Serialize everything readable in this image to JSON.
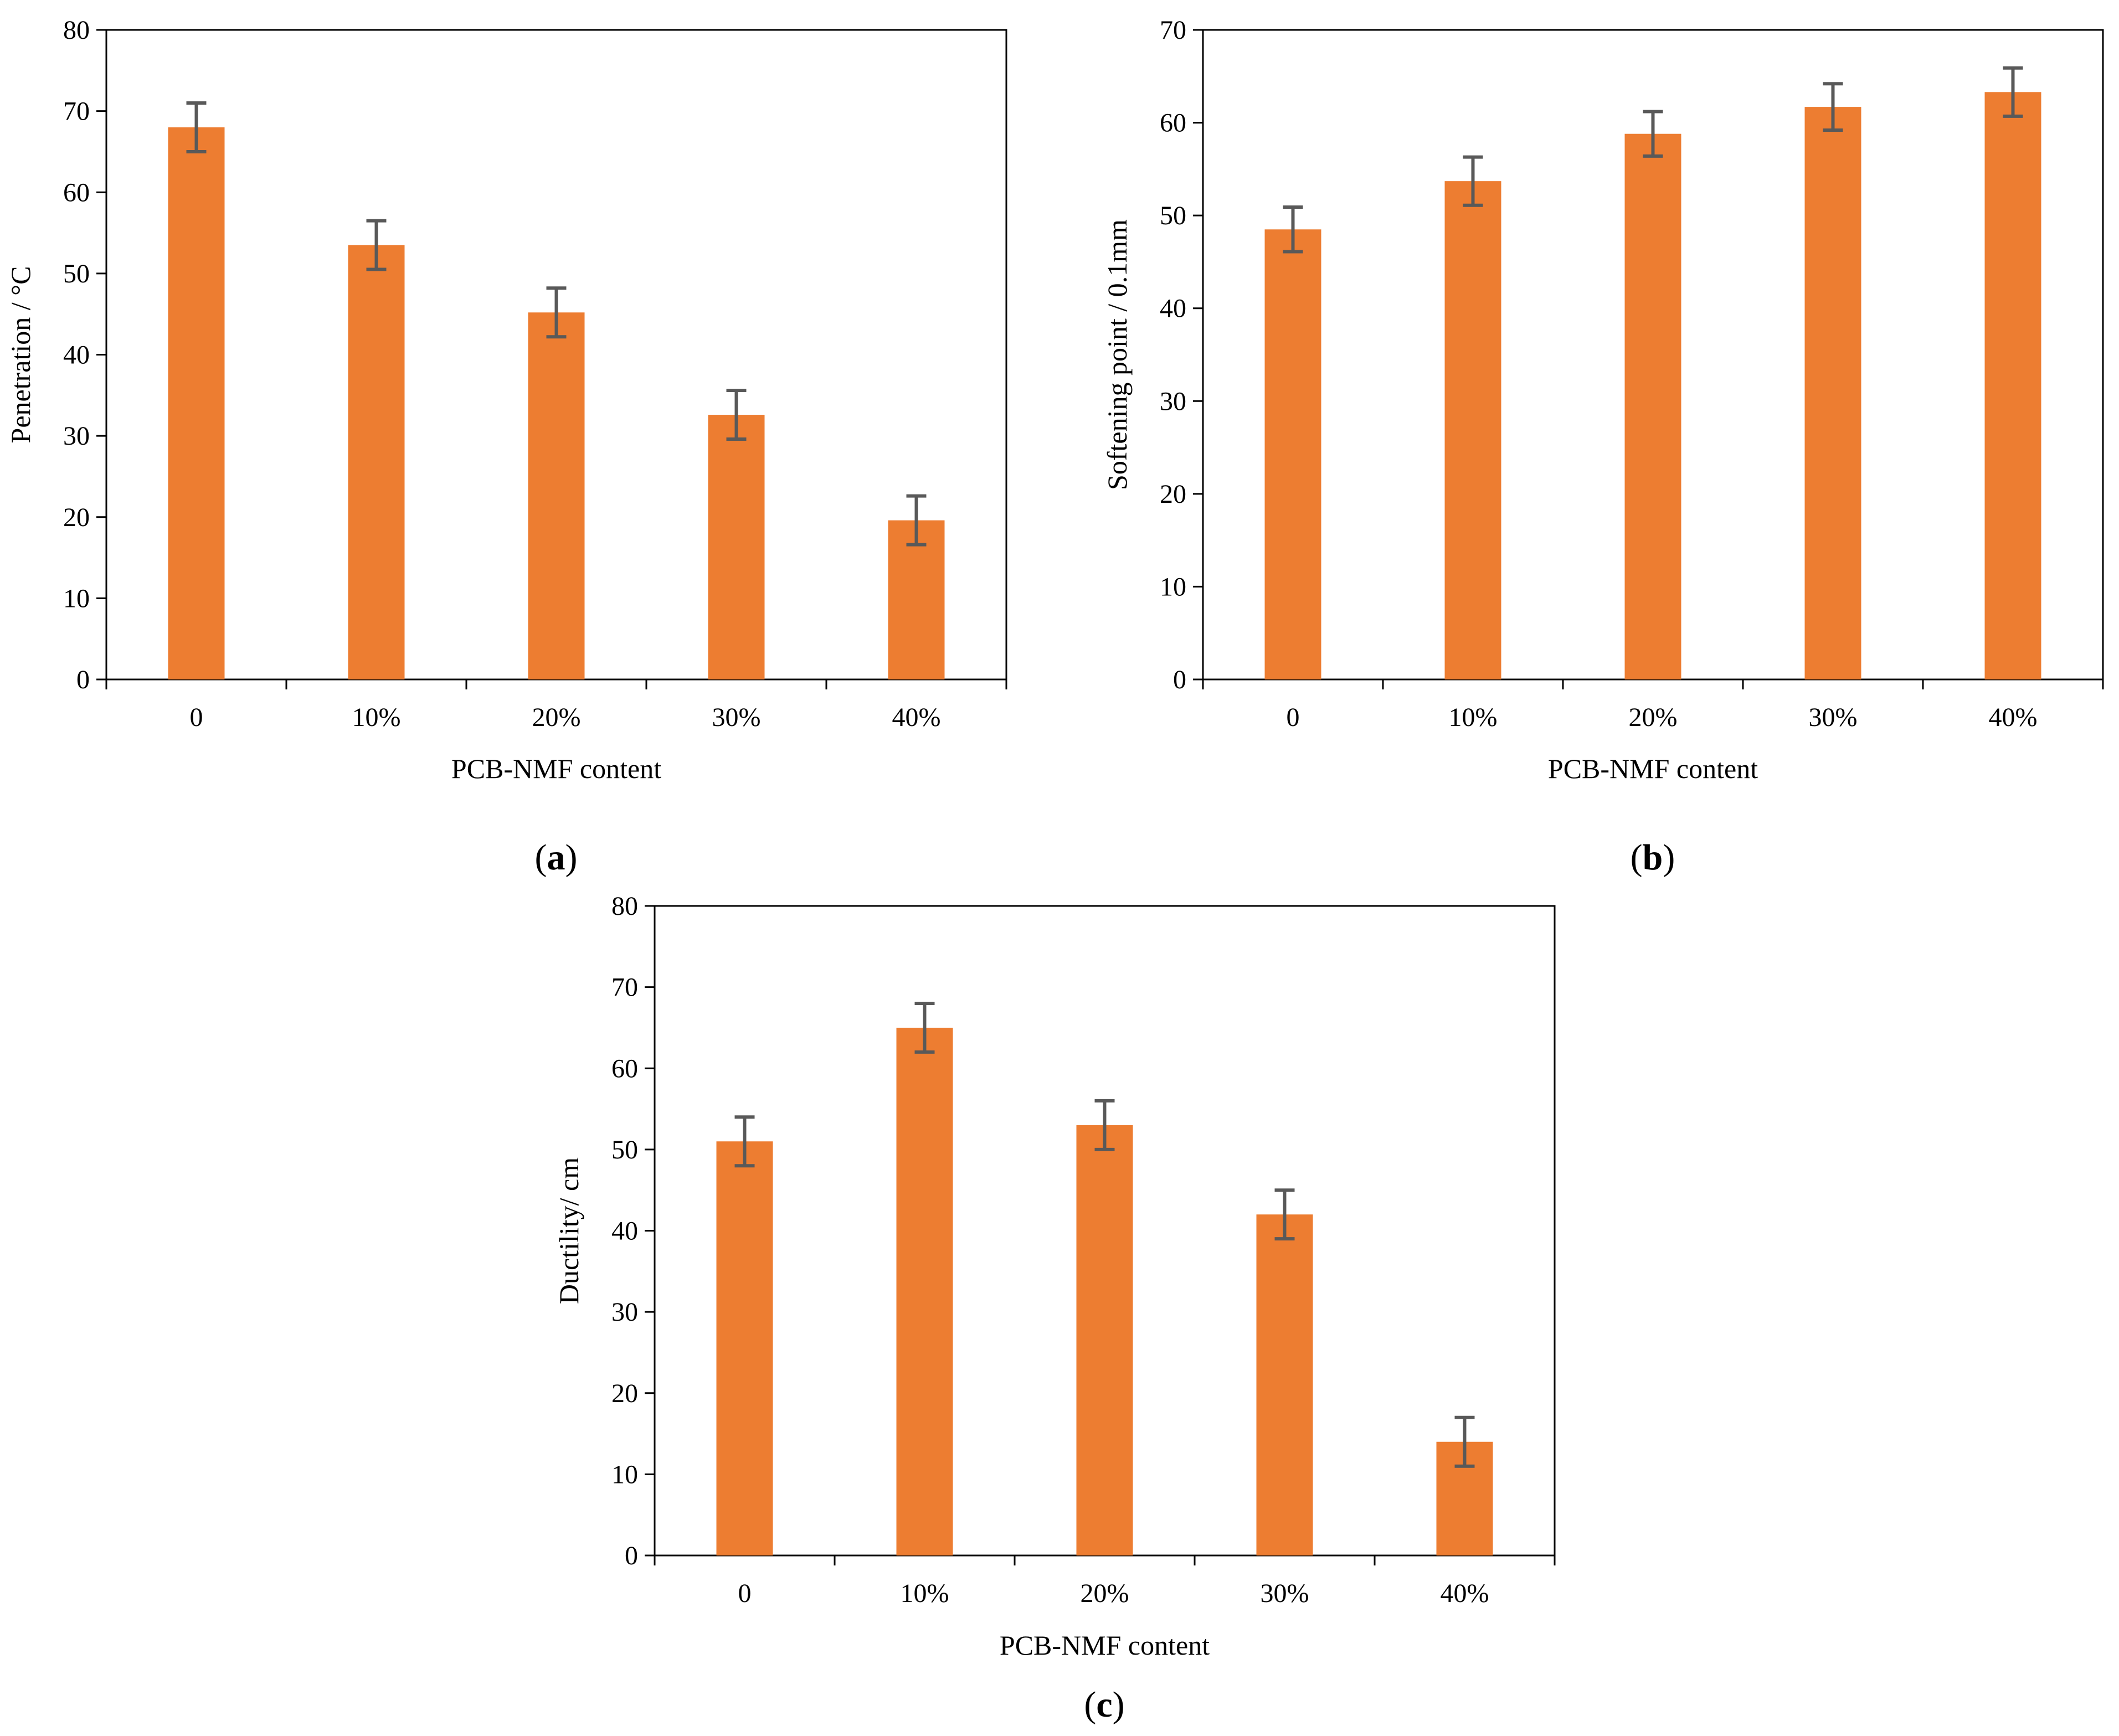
{
  "figure": {
    "bar_color": "#ED7D31",
    "error_bar_color": "#595959",
    "axis_color": "#000000"
  },
  "chart_data": [
    {
      "panel": "a",
      "type": "bar",
      "categories": [
        "0",
        "10%",
        "20%",
        "30%",
        "40%"
      ],
      "values": [
        68,
        53.5,
        45.2,
        32.6,
        19.6
      ],
      "errors": [
        3,
        3,
        3,
        3,
        3
      ],
      "xlabel": "PCB-NMF content",
      "ylabel": "Penetration / °C",
      "ylim": [
        0,
        80
      ],
      "yticks": [
        0,
        10,
        20,
        30,
        40,
        50,
        60,
        70,
        80
      ],
      "grid": false,
      "label_open": "(",
      "label_letter": "a",
      "label_close": ")"
    },
    {
      "panel": "b",
      "type": "bar",
      "categories": [
        "0",
        "10%",
        "20%",
        "30%",
        "40%"
      ],
      "values": [
        48.5,
        53.7,
        58.8,
        61.7,
        63.3
      ],
      "errors": [
        2.4,
        2.6,
        2.4,
        2.5,
        2.6
      ],
      "xlabel": "PCB-NMF content",
      "ylabel": "Softening point / 0.1mm",
      "ylim": [
        0,
        70
      ],
      "yticks": [
        0,
        10,
        20,
        30,
        40,
        50,
        60,
        70
      ],
      "grid": false,
      "label_open": "(",
      "label_letter": "b",
      "label_close": ")"
    },
    {
      "panel": "c",
      "type": "bar",
      "categories": [
        "0",
        "10%",
        "20%",
        "30%",
        "40%"
      ],
      "values": [
        51,
        65,
        53,
        42,
        14
      ],
      "errors": [
        3,
        3,
        3,
        3,
        3
      ],
      "xlabel": "PCB-NMF content",
      "ylabel": "Ductility/ cm",
      "ylim": [
        0,
        80
      ],
      "yticks": [
        0,
        10,
        20,
        30,
        40,
        50,
        60,
        70,
        80
      ],
      "grid": false,
      "label_open": "(",
      "label_letter": "c",
      "label_close": ")"
    }
  ]
}
